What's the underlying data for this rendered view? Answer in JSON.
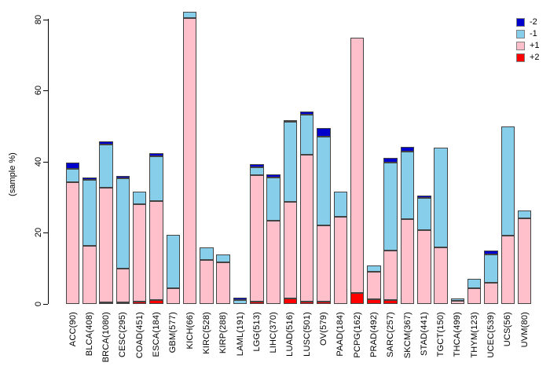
{
  "chart_data": {
    "type": "bar",
    "variant": "stacked",
    "title": "",
    "xlabel": "",
    "ylabel": "(sample %)",
    "ylim": [
      0,
      80
    ],
    "yticks": [
      0,
      20,
      40,
      60,
      80
    ],
    "grid": "off",
    "categories": [
      "ACC(90)",
      "BLCA(408)",
      "BRCA(1080)",
      "CESC(295)",
      "COAD(451)",
      "ESCA(184)",
      "GBM(577)",
      "KICH(66)",
      "KIRC(528)",
      "KIRP(288)",
      "LAML(191)",
      "LGG(513)",
      "LIHC(370)",
      "LUAD(516)",
      "LUSC(501)",
      "OV(579)",
      "PAAD(184)",
      "PCPG(162)",
      "PRAD(492)",
      "SARC(257)",
      "SKCM(367)",
      "STAD(441)",
      "TGCT(150)",
      "THCA(499)",
      "THYM(123)",
      "UCEC(539)",
      "UCS(56)",
      "UVM(80)"
    ],
    "stack_order_bottom_to_top": [
      "+2",
      "+1",
      "-1",
      "-2"
    ],
    "series": [
      {
        "name": "+2",
        "color": "#FF0000",
        "values": [
          0,
          0,
          0.4,
          0.4,
          0.7,
          1.0,
          0,
          0,
          0,
          0,
          0,
          0.6,
          0,
          1.5,
          0.6,
          0.6,
          0,
          3.0,
          1.4,
          1.2,
          0,
          0,
          0,
          0,
          0,
          0,
          0,
          0
        ]
      },
      {
        "name": "+1",
        "color": "#FFC0CB",
        "values": [
          34.3,
          16.3,
          32.2,
          9.6,
          27.3,
          28.0,
          4.4,
          80.3,
          12.3,
          11.8,
          0,
          35.6,
          23.5,
          27.2,
          41.3,
          21.4,
          24.6,
          71.9,
          7.7,
          13.9,
          23.9,
          20.7,
          16.0,
          0.8,
          4.4,
          6.0,
          19.3,
          24.0
        ]
      },
      {
        "name": "-1",
        "color": "#87CEEB",
        "values": [
          3.6,
          18.6,
          12.3,
          25.3,
          3.5,
          12.5,
          15.1,
          1.8,
          3.7,
          2.0,
          1.0,
          2.3,
          12.1,
          22.6,
          11.3,
          25.1,
          6.9,
          0,
          1.7,
          24.6,
          18.9,
          9.1,
          27.9,
          0.7,
          2.7,
          8.0,
          30.5,
          2.2
        ]
      },
      {
        "name": "-2",
        "color": "#0000CD",
        "values": [
          1.8,
          0.6,
          0.9,
          0.7,
          0,
          0.9,
          0,
          0,
          0,
          0,
          0.7,
          0.8,
          0.9,
          0.4,
          0.8,
          2.3,
          0,
          0,
          0,
          1.3,
          1.3,
          0.7,
          0,
          0,
          0,
          1.0,
          0,
          0
        ]
      }
    ],
    "legend": {
      "position": "top-right",
      "entries": [
        "-2",
        "-1",
        "+1",
        "+2"
      ]
    }
  }
}
